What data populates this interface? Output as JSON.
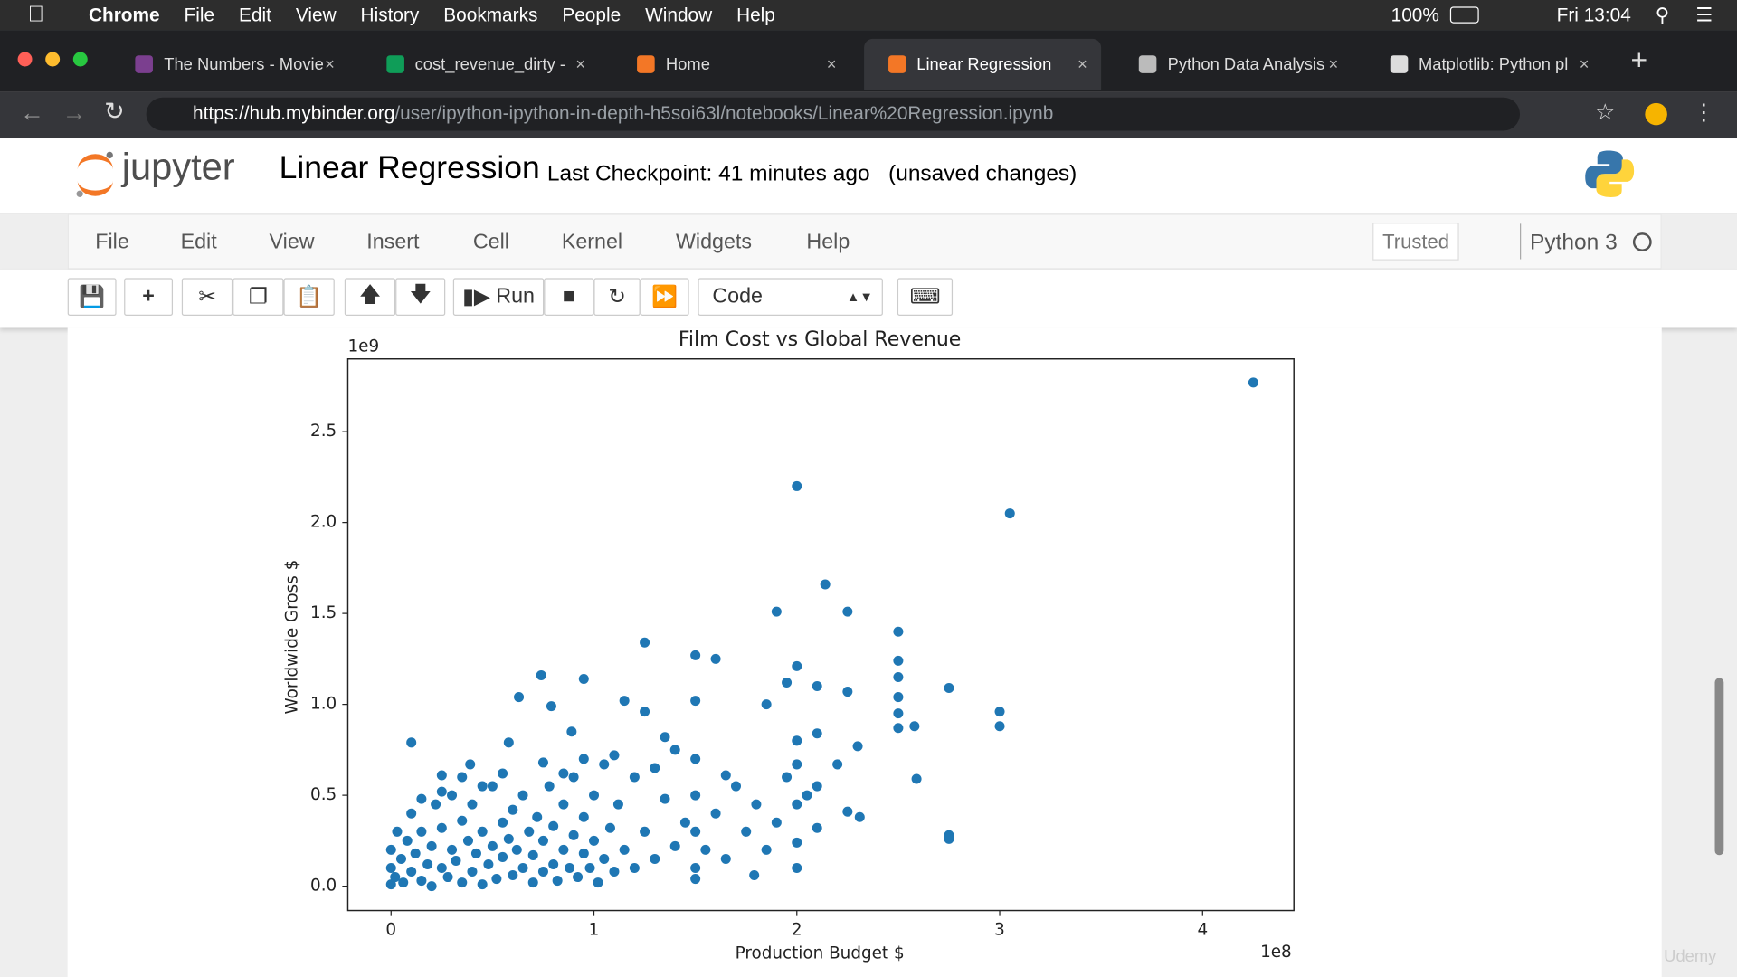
{
  "mac_menu": {
    "app": "Chrome",
    "items": [
      "File",
      "Edit",
      "View",
      "History",
      "Bookmarks",
      "People",
      "Window",
      "Help"
    ],
    "battery": "100%",
    "clock": "Fri 13:04"
  },
  "tabs": [
    "The Numbers - Movie",
    "cost_revenue_dirty -",
    "Home",
    "Linear Regression",
    "Python Data Analysis",
    "Matplotlib: Python pl"
  ],
  "address": {
    "host": "https://hub.mybinder.org",
    "path": "/user/ipython-ipython-in-depth-h5soi63l/notebooks/Linear%20Regression.ipynb"
  },
  "notebook": {
    "logo": "jupyter",
    "title": "Linear Regression",
    "checkpoint": "Last Checkpoint: 41 minutes ago",
    "status": "(unsaved changes)",
    "menu": [
      "File",
      "Edit",
      "View",
      "Insert",
      "Cell",
      "Kernel",
      "Widgets",
      "Help"
    ],
    "trusted": "Trusted",
    "kernel": "Python 3",
    "run_button": "Run",
    "cell_type": "Code"
  },
  "chart_data": {
    "type": "scatter",
    "title": "Film Cost vs Global Revenue",
    "x_label": "Production Budget $",
    "y_label": "Worldwide Gross $",
    "x_offset": "1e8",
    "y_offset": "1e9",
    "color": "#1f77b4",
    "xlim": [
      -0.213,
      4.45
    ],
    "ylim": [
      -0.134,
      2.9
    ],
    "xticks": [
      0,
      1,
      2,
      3,
      4
    ],
    "yticks": [
      {
        "value": 0,
        "label": "0.0"
      },
      0.5,
      {
        "value": 1,
        "label": "1.0"
      },
      1.5,
      {
        "value": 2,
        "label": "2.0"
      },
      2.5
    ],
    "x": [
      4.25,
      2.0,
      3.05,
      2.14,
      1.9,
      2.25,
      2.5,
      1.25,
      1.5,
      1.6,
      2.5,
      2.0,
      0.74,
      0.95,
      2.5,
      2.75,
      2.1,
      1.95,
      2.25,
      2.5,
      0.63,
      1.15,
      1.5,
      3.0,
      2.5,
      1.25,
      1.85,
      0.79,
      2.5,
      2.58,
      3.0,
      0.1,
      2.59,
      2.75,
      2.75,
      2.31,
      2.25,
      2.1,
      1.79,
      1.5,
      2.0,
      2.2,
      2.1,
      2.3,
      2.0,
      1.65,
      1.35,
      1.05,
      0.58,
      0.89,
      0.39,
      0.25,
      0,
      0,
      0,
      0.02,
      0.03,
      0.05,
      0.06,
      0.08,
      0.1,
      0.1,
      0.12,
      0.15,
      0.15,
      0.18,
      0.2,
      0.2,
      0.22,
      0.25,
      0.25,
      0.28,
      0.3,
      0.3,
      0.32,
      0.35,
      0.35,
      0.38,
      0.4,
      0.4,
      0.42,
      0.45,
      0.45,
      0.48,
      0.5,
      0.5,
      0.52,
      0.55,
      0.55,
      0.58,
      0.6,
      0.6,
      0.62,
      0.65,
      0.65,
      0.68,
      0.7,
      0.7,
      0.72,
      0.75,
      0.75,
      0.78,
      0.8,
      0.8,
      0.82,
      0.85,
      0.85,
      0.88,
      0.9,
      0.9,
      0.92,
      0.95,
      0.95,
      0.98,
      1,
      1,
      1.02,
      1.05,
      1.08,
      1.1,
      1.12,
      1.15,
      1.2,
      1.2,
      1.25,
      1.3,
      1.35,
      1.4,
      1.45,
      1.5,
      1.5,
      1.5,
      1.5,
      1.55,
      1.6,
      1.65,
      1.7,
      1.75,
      1.8,
      1.85,
      1.9,
      2,
      2,
      2,
      2.05,
      2.1,
      1.95,
      1.3,
      1.4,
      1.1,
      0.95,
      0.85,
      0.75,
      0.55,
      0.45,
      0.35,
      0.25,
      0.15
    ],
    "values": [
      2.77,
      2.2,
      2.05,
      1.66,
      1.51,
      1.51,
      1.4,
      1.34,
      1.27,
      1.25,
      1.24,
      1.21,
      1.16,
      1.14,
      1.15,
      1.09,
      1.1,
      1.12,
      1.07,
      1.04,
      1.04,
      1.02,
      1.02,
      0.96,
      0.95,
      0.96,
      1.0,
      0.99,
      0.87,
      0.88,
      0.88,
      0.79,
      0.59,
      0.28,
      0.26,
      0.38,
      0.41,
      0.32,
      0.06,
      0.04,
      0.24,
      0.67,
      0.84,
      0.77,
      0.67,
      0.61,
      0.82,
      0.67,
      0.79,
      0.85,
      0.67,
      0.61,
      0.01,
      0.1,
      0.2,
      0.05,
      0.3,
      0.15,
      0.02,
      0.25,
      0.08,
      0.4,
      0.18,
      0.03,
      0.3,
      0.12,
      0.22,
      0,
      0.45,
      0.1,
      0.32,
      0.05,
      0.2,
      0.5,
      0.14,
      0.02,
      0.36,
      0.25,
      0.08,
      0.45,
      0.18,
      0.3,
      0.01,
      0.12,
      0.22,
      0.55,
      0.04,
      0.35,
      0.16,
      0.26,
      0.06,
      0.42,
      0.2,
      0.1,
      0.5,
      0.3,
      0.02,
      0.17,
      0.38,
      0.08,
      0.25,
      0.55,
      0.12,
      0.33,
      0.03,
      0.2,
      0.45,
      0.1,
      0.28,
      0.6,
      0.05,
      0.18,
      0.38,
      0.1,
      0.25,
      0.5,
      0.02,
      0.15,
      0.32,
      0.08,
      0.45,
      0.2,
      0.6,
      0.1,
      0.3,
      0.15,
      0.48,
      0.22,
      0.35,
      0.1,
      0.3,
      0.5,
      0.7,
      0.2,
      0.4,
      0.15,
      0.55,
      0.3,
      0.45,
      0.2,
      0.35,
      0.1,
      0.45,
      0.8,
      0.5,
      0.55,
      0.6,
      0.65,
      0.75,
      0.72,
      0.7,
      0.62,
      0.68,
      0.62,
      0.55,
      0.6,
      0.52,
      0.48
    ]
  },
  "watermark": "Udemy"
}
